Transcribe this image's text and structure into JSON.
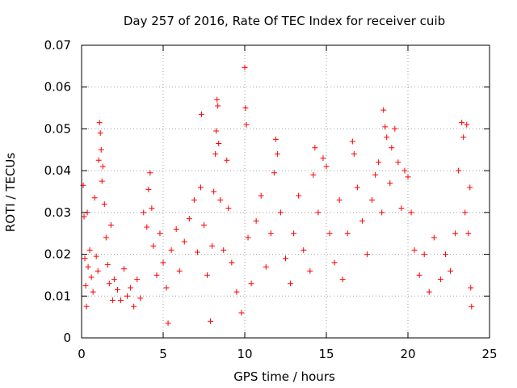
{
  "chart_data": {
    "type": "scatter",
    "title": "Day 257 of 2016, Rate Of TEC Index for receiver cuib",
    "xlabel": "GPS time / hours",
    "ylabel": "ROTI / TECUs",
    "xlim": [
      0,
      25
    ],
    "ylim": [
      0,
      0.07
    ],
    "x_ticks": [
      0,
      5,
      10,
      15,
      20,
      25
    ],
    "y_ticks": [
      0,
      0.01,
      0.02,
      0.03,
      0.04,
      0.05,
      0.06,
      0.07
    ],
    "x_tick_labels": [
      "0",
      "5",
      "10",
      "15",
      "20",
      "25"
    ],
    "y_tick_labels": [
      "0",
      "0.01",
      "0.02",
      "0.03",
      "0.04",
      "0.05",
      "0.06",
      "0.07"
    ],
    "grid": true,
    "marker": "+",
    "color": "#ff0000",
    "series": [
      {
        "name": "ROTI",
        "points": [
          [
            0.1,
            0.0365
          ],
          [
            0.15,
            0.029
          ],
          [
            0.2,
            0.019
          ],
          [
            0.25,
            0.0125
          ],
          [
            0.3,
            0.0075
          ],
          [
            0.35,
            0.03
          ],
          [
            0.4,
            0.017
          ],
          [
            0.5,
            0.021
          ],
          [
            0.6,
            0.0145
          ],
          [
            0.7,
            0.011
          ],
          [
            0.8,
            0.0335
          ],
          [
            0.9,
            0.0195
          ],
          [
            1.0,
            0.016
          ],
          [
            1.05,
            0.0425
          ],
          [
            1.1,
            0.0515
          ],
          [
            1.15,
            0.049
          ],
          [
            1.2,
            0.045
          ],
          [
            1.25,
            0.0375
          ],
          [
            1.3,
            0.041
          ],
          [
            1.4,
            0.032
          ],
          [
            1.5,
            0.024
          ],
          [
            1.6,
            0.0175
          ],
          [
            1.7,
            0.013
          ],
          [
            1.8,
            0.027
          ],
          [
            1.9,
            0.009
          ],
          [
            2.0,
            0.014
          ],
          [
            2.2,
            0.0115
          ],
          [
            2.4,
            0.009
          ],
          [
            2.6,
            0.0165
          ],
          [
            2.8,
            0.01
          ],
          [
            3.0,
            0.012
          ],
          [
            3.2,
            0.0075
          ],
          [
            3.4,
            0.014
          ],
          [
            3.6,
            0.0095
          ],
          [
            3.8,
            0.03
          ],
          [
            4.0,
            0.0265
          ],
          [
            4.1,
            0.0355
          ],
          [
            4.2,
            0.0395
          ],
          [
            4.3,
            0.031
          ],
          [
            4.4,
            0.022
          ],
          [
            4.6,
            0.015
          ],
          [
            4.8,
            0.025
          ],
          [
            5.0,
            0.018
          ],
          [
            5.2,
            0.012
          ],
          [
            5.3,
            0.0035
          ],
          [
            5.5,
            0.021
          ],
          [
            5.8,
            0.026
          ],
          [
            6.0,
            0.016
          ],
          [
            6.3,
            0.023
          ],
          [
            6.6,
            0.0285
          ],
          [
            6.9,
            0.033
          ],
          [
            7.1,
            0.0205
          ],
          [
            7.3,
            0.036
          ],
          [
            7.35,
            0.0535
          ],
          [
            7.5,
            0.027
          ],
          [
            7.7,
            0.015
          ],
          [
            7.9,
            0.004
          ],
          [
            8.0,
            0.022
          ],
          [
            8.1,
            0.035
          ],
          [
            8.2,
            0.044
          ],
          [
            8.25,
            0.0495
          ],
          [
            8.3,
            0.057
          ],
          [
            8.35,
            0.0555
          ],
          [
            8.4,
            0.0465
          ],
          [
            8.5,
            0.033
          ],
          [
            8.7,
            0.021
          ],
          [
            8.9,
            0.0425
          ],
          [
            9.0,
            0.031
          ],
          [
            9.2,
            0.018
          ],
          [
            9.5,
            0.011
          ],
          [
            9.8,
            0.006
          ],
          [
            10.0,
            0.0647
          ],
          [
            10.05,
            0.055
          ],
          [
            10.1,
            0.051
          ],
          [
            10.2,
            0.024
          ],
          [
            10.4,
            0.013
          ],
          [
            10.7,
            0.028
          ],
          [
            11.0,
            0.034
          ],
          [
            11.3,
            0.017
          ],
          [
            11.6,
            0.025
          ],
          [
            11.8,
            0.0395
          ],
          [
            11.9,
            0.0475
          ],
          [
            12.0,
            0.044
          ],
          [
            12.2,
            0.03
          ],
          [
            12.5,
            0.019
          ],
          [
            12.8,
            0.013
          ],
          [
            13.0,
            0.025
          ],
          [
            13.3,
            0.034
          ],
          [
            13.6,
            0.021
          ],
          [
            14.0,
            0.016
          ],
          [
            14.2,
            0.039
          ],
          [
            14.3,
            0.0455
          ],
          [
            14.5,
            0.03
          ],
          [
            14.8,
            0.043
          ],
          [
            15.0,
            0.041
          ],
          [
            15.2,
            0.025
          ],
          [
            15.5,
            0.018
          ],
          [
            15.8,
            0.033
          ],
          [
            16.0,
            0.014
          ],
          [
            16.3,
            0.025
          ],
          [
            16.6,
            0.047
          ],
          [
            16.7,
            0.044
          ],
          [
            16.9,
            0.036
          ],
          [
            17.2,
            0.028
          ],
          [
            17.5,
            0.02
          ],
          [
            17.8,
            0.033
          ],
          [
            18.0,
            0.039
          ],
          [
            18.2,
            0.042
          ],
          [
            18.4,
            0.03
          ],
          [
            18.5,
            0.0545
          ],
          [
            18.6,
            0.0505
          ],
          [
            18.7,
            0.048
          ],
          [
            18.9,
            0.037
          ],
          [
            19.0,
            0.0455
          ],
          [
            19.2,
            0.05
          ],
          [
            19.4,
            0.042
          ],
          [
            19.6,
            0.031
          ],
          [
            19.8,
            0.04
          ],
          [
            20.0,
            0.0385
          ],
          [
            20.2,
            0.03
          ],
          [
            20.4,
            0.021
          ],
          [
            20.7,
            0.015
          ],
          [
            21.0,
            0.02
          ],
          [
            21.3,
            0.011
          ],
          [
            21.6,
            0.024
          ],
          [
            22.0,
            0.014
          ],
          [
            22.3,
            0.02
          ],
          [
            22.6,
            0.016
          ],
          [
            22.9,
            0.025
          ],
          [
            23.1,
            0.04
          ],
          [
            23.3,
            0.0515
          ],
          [
            23.4,
            0.048
          ],
          [
            23.5,
            0.03
          ],
          [
            23.6,
            0.051
          ],
          [
            23.7,
            0.025
          ],
          [
            23.8,
            0.036
          ],
          [
            23.85,
            0.012
          ],
          [
            23.9,
            0.0075
          ]
        ]
      }
    ]
  }
}
